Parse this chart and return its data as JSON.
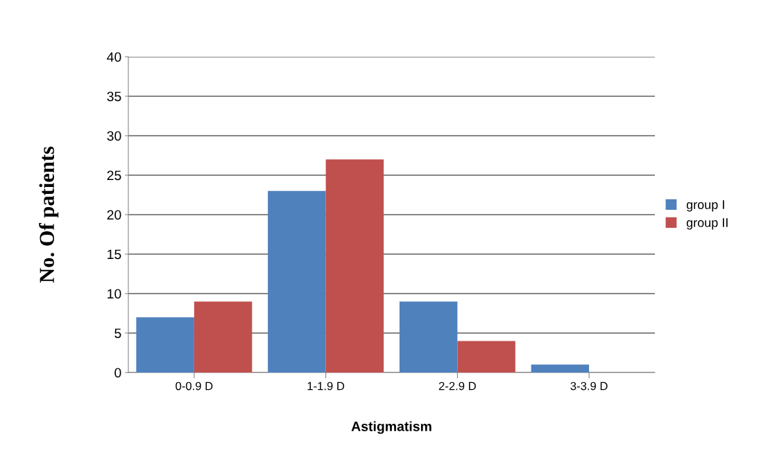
{
  "chart_data": {
    "type": "bar",
    "xlabel": "Astigmatism",
    "ylabel": "No. Of patients",
    "categories": [
      "0-0.9 D",
      "1-1.9 D",
      "2-2.9 D",
      "3-3.9 D"
    ],
    "series": [
      {
        "name": "group I",
        "color": "#4f81bd",
        "values": [
          7,
          23,
          9,
          1
        ]
      },
      {
        "name": "group II",
        "color": "#c0504d",
        "values": [
          9,
          27,
          4,
          0
        ]
      }
    ],
    "ylim": [
      0,
      40
    ],
    "yticks": [
      0,
      5,
      10,
      15,
      20,
      25,
      30,
      35,
      40
    ],
    "grid": "y",
    "legend": "right"
  }
}
